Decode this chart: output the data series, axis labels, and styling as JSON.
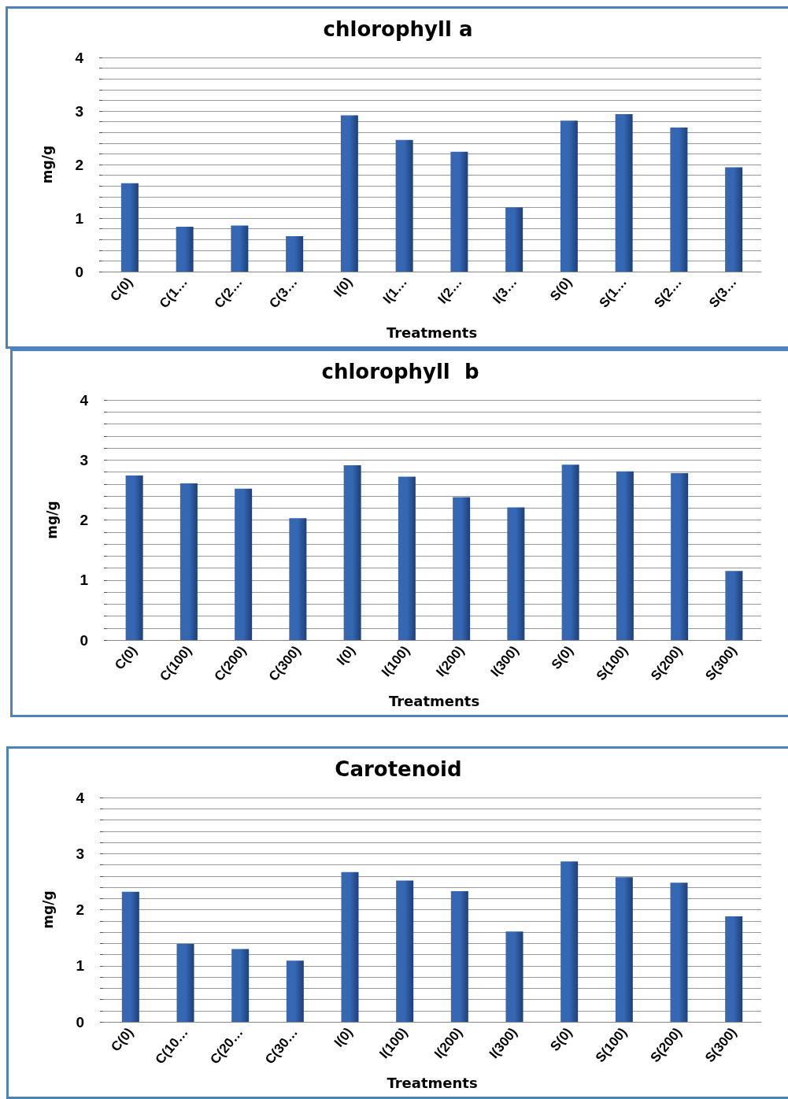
{
  "chart_data": [
    {
      "type": "bar",
      "title": "chlorophyll a",
      "xlabel": "Treatments",
      "ylabel": "mg/g",
      "categories": [
        "C(0)",
        "C(1…",
        "C(2…",
        "C(3…",
        "I(0)",
        "I(1…",
        "I(2…",
        "I(3…",
        "S(0)",
        "S(1…",
        "S(2…",
        "S(3…"
      ],
      "series": [
        {
          "color": "#3567b3",
          "values": [
            1.65,
            0.84,
            0.86,
            0.66,
            2.92,
            2.46,
            2.24,
            1.2,
            2.82,
            2.94,
            2.69,
            1.95
          ]
        }
      ],
      "ylim": [
        0,
        4
      ],
      "yticks": [
        0,
        {
          "value": 0.2,
          "label": null
        },
        {
          "value": 0.4,
          "label": null
        },
        {
          "value": 0.6,
          "label": null
        },
        {
          "value": 0.8,
          "label": null
        },
        1,
        {
          "value": 1.2,
          "label": null
        },
        {
          "value": 1.4,
          "label": null
        },
        {
          "value": 1.6,
          "label": null
        },
        {
          "value": 1.8,
          "label": null
        },
        2,
        {
          "value": 2.2,
          "label": null
        },
        {
          "value": 2.4,
          "label": null
        },
        {
          "value": 2.6,
          "label": null
        },
        {
          "value": 2.8,
          "label": null
        },
        3,
        {
          "value": 3.2,
          "label": null
        },
        {
          "value": 3.4,
          "label": null
        },
        {
          "value": 3.6,
          "label": null
        },
        {
          "value": 3.8,
          "label": null
        },
        4
      ],
      "grid": "y"
    },
    {
      "type": "bar",
      "title": "chlorophyll  b",
      "xlabel": "Treatments",
      "ylabel": "mg/g",
      "categories": [
        "C(0)",
        "C(100)",
        "C(200)",
        "C(300)",
        "I(0)",
        "I(100)",
        "I(200)",
        "I(300)",
        "S(0)",
        "S(100)",
        "S(200)",
        "S(300)"
      ],
      "series": [
        {
          "color": "#3567b3",
          "values": [
            2.74,
            2.61,
            2.52,
            2.03,
            2.91,
            2.72,
            2.38,
            2.21,
            2.92,
            2.81,
            2.78,
            1.15
          ]
        }
      ],
      "ylim": [
        0,
        4
      ],
      "yticks": [
        0,
        {
          "value": 0.2,
          "label": null
        },
        {
          "value": 0.4,
          "label": null
        },
        {
          "value": 0.6,
          "label": null
        },
        {
          "value": 0.8,
          "label": null
        },
        1,
        {
          "value": 1.2,
          "label": null
        },
        {
          "value": 1.4,
          "label": null
        },
        {
          "value": 1.6,
          "label": null
        },
        {
          "value": 1.8,
          "label": null
        },
        2,
        {
          "value": 2.2,
          "label": null
        },
        {
          "value": 2.4,
          "label": null
        },
        {
          "value": 2.6,
          "label": null
        },
        {
          "value": 2.8,
          "label": null
        },
        3,
        {
          "value": 3.2,
          "label": null
        },
        {
          "value": 3.4,
          "label": null
        },
        {
          "value": 3.6,
          "label": null
        },
        {
          "value": 3.8,
          "label": null
        },
        4
      ],
      "grid": "y"
    },
    {
      "type": "bar",
      "title": "Carotenoid",
      "xlabel": "Treatments",
      "ylabel": "mg/g",
      "categories": [
        "C(0)",
        "C(10…",
        "C(20…",
        "C(30…",
        "I(0)",
        "I(100)",
        "I(200)",
        "I(300)",
        "S(0)",
        "S(100)",
        "S(200)",
        "S(300)"
      ],
      "series": [
        {
          "color": "#3567b3",
          "values": [
            2.32,
            1.39,
            1.3,
            1.09,
            2.67,
            2.52,
            2.33,
            1.61,
            2.86,
            2.58,
            2.48,
            1.88
          ]
        }
      ],
      "ylim": [
        0,
        4
      ],
      "yticks": [
        0,
        {
          "value": 0.2,
          "label": null
        },
        {
          "value": 0.4,
          "label": null
        },
        {
          "value": 0.6,
          "label": null
        },
        {
          "value": 0.8,
          "label": null
        },
        1,
        {
          "value": 1.2,
          "label": null
        },
        {
          "value": 1.4,
          "label": null
        },
        {
          "value": 1.6,
          "label": null
        },
        {
          "value": 1.8,
          "label": null
        },
        2,
        {
          "value": 2.2,
          "label": null
        },
        {
          "value": 2.4,
          "label": null
        },
        {
          "value": 2.6,
          "label": null
        },
        {
          "value": 2.8,
          "label": null
        },
        3,
        {
          "value": 3.2,
          "label": null
        },
        {
          "value": 3.4,
          "label": null
        },
        {
          "value": 3.6,
          "label": null
        },
        {
          "value": 3.8,
          "label": null
        },
        4
      ],
      "grid": "y"
    }
  ]
}
